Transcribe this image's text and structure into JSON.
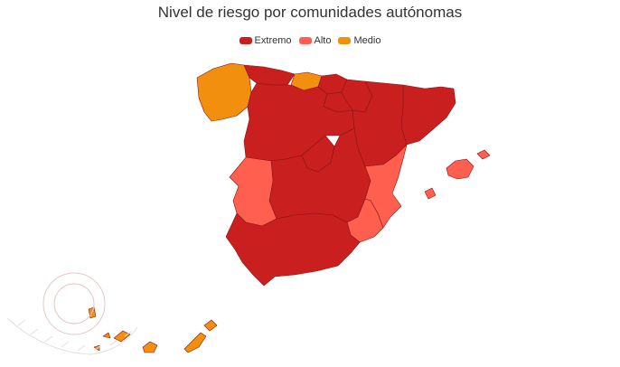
{
  "title": "Nivel de riesgo por comunidades autónomas",
  "legend": [
    {
      "key": "extremo",
      "label": "Extremo",
      "color": "#c91f1f"
    },
    {
      "key": "alto",
      "label": "Alto",
      "color": "#ff5f4e"
    },
    {
      "key": "medio",
      "label": "Medio",
      "color": "#f28f0f"
    }
  ],
  "regions": [
    {
      "id": "galicia",
      "level": "medio"
    },
    {
      "id": "asturias",
      "level": "extremo"
    },
    {
      "id": "cantabria",
      "level": "medio"
    },
    {
      "id": "pais-vasco",
      "level": "extremo"
    },
    {
      "id": "navarra",
      "level": "extremo"
    },
    {
      "id": "la-rioja",
      "level": "extremo"
    },
    {
      "id": "aragon",
      "level": "extremo"
    },
    {
      "id": "cataluna",
      "level": "extremo"
    },
    {
      "id": "castilla-y-leon",
      "level": "extremo"
    },
    {
      "id": "madrid",
      "level": "extremo"
    },
    {
      "id": "castilla-la-mancha",
      "level": "extremo"
    },
    {
      "id": "extremadura",
      "level": "alto"
    },
    {
      "id": "comunidad-valenciana",
      "level": "alto"
    },
    {
      "id": "murcia",
      "level": "alto"
    },
    {
      "id": "andalucia",
      "level": "extremo"
    },
    {
      "id": "baleares",
      "level": "alto"
    },
    {
      "id": "canarias",
      "level": "medio"
    }
  ]
}
